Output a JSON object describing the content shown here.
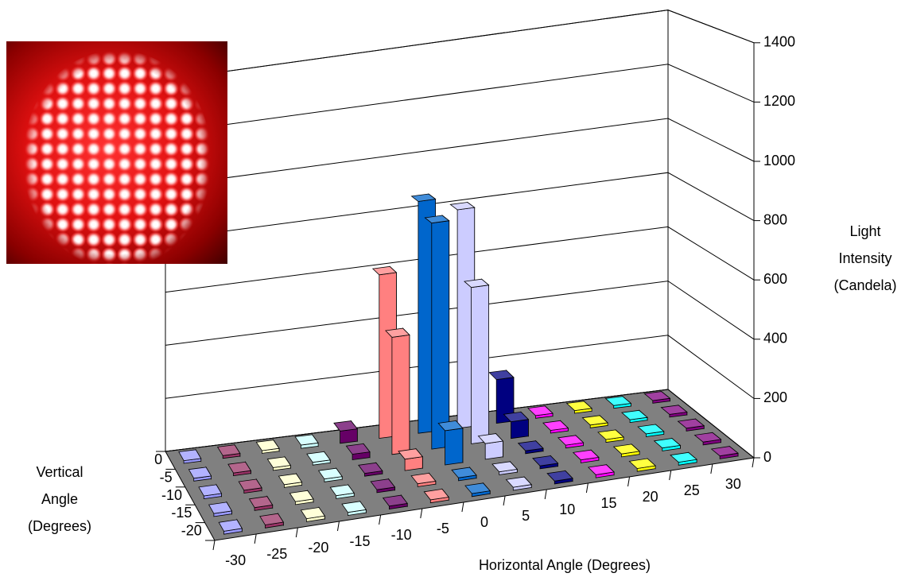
{
  "chart_data": {
    "type": "bar3d",
    "xlabel": "Horizontal Angle (Degrees)",
    "depth_label": [
      "Vertical",
      "Angle",
      "(Degrees)"
    ],
    "ylabel": [
      "Light",
      "Intensity",
      "(Candela)"
    ],
    "categories": [
      -30,
      -25,
      -20,
      -15,
      -10,
      -5,
      0,
      5,
      10,
      15,
      20,
      25,
      30
    ],
    "colors": [
      "#9999ff",
      "#993366",
      "#ffffcc",
      "#ccffff",
      "#660066",
      "#ff8080",
      "#0066cc",
      "#ccccff",
      "#000080",
      "#ff00ff",
      "#ffff00",
      "#00ffff",
      "#800080"
    ],
    "series": [
      {
        "name": "0",
        "values": [
          10,
          10,
          10,
          12,
          45,
          600,
          850,
          800,
          160,
          10,
          10,
          10,
          10
        ]
      },
      {
        "name": "-5",
        "values": [
          10,
          10,
          10,
          10,
          20,
          420,
          810,
          560,
          60,
          10,
          10,
          10,
          10
        ]
      },
      {
        "name": "-10",
        "values": [
          10,
          10,
          10,
          10,
          10,
          40,
          120,
          55,
          10,
          10,
          10,
          10,
          10
        ]
      },
      {
        "name": "-15",
        "values": [
          10,
          10,
          10,
          10,
          10,
          10,
          10,
          10,
          10,
          10,
          10,
          10,
          10
        ]
      },
      {
        "name": "-20",
        "values": [
          10,
          10,
          10,
          10,
          10,
          10,
          10,
          10,
          10,
          10,
          10,
          10,
          10
        ]
      }
    ],
    "ylim": [
      0,
      1400
    ],
    "yticks": [
      0,
      200,
      400,
      600,
      800,
      1000,
      1200,
      1400
    ],
    "grid": true
  }
}
